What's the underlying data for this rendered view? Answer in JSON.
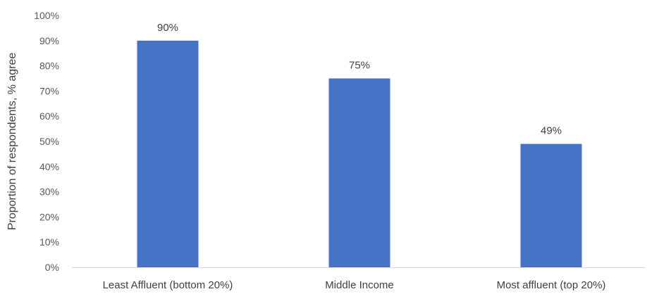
{
  "chart_data": {
    "type": "bar",
    "title": "",
    "xlabel": "",
    "ylabel": "Proportion of respondents, % agree",
    "categories": [
      "Least Affluent (bottom 20%)",
      "Middle Income",
      "Most affluent (top 20%)"
    ],
    "values": [
      90,
      75,
      49
    ],
    "data_labels": [
      "90%",
      "75%",
      "49%"
    ],
    "ylim": [
      0,
      100
    ],
    "yticks": [
      0,
      10,
      20,
      30,
      40,
      50,
      60,
      70,
      80,
      90,
      100
    ],
    "ytick_labels": [
      "0%",
      "10%",
      "20%",
      "30%",
      "40%",
      "50%",
      "60%",
      "70%",
      "80%",
      "90%",
      "100%"
    ],
    "grid": false,
    "legend": "none"
  },
  "colors": {
    "bar": "#4472C4",
    "axis_line": "#D9D9D9"
  }
}
